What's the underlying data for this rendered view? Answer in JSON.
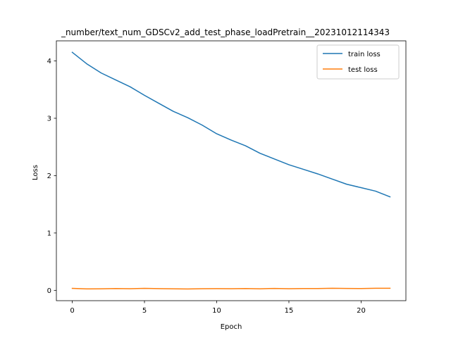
{
  "chart_data": {
    "type": "line",
    "title": "_number/text_num_GDSCv2_add_test_phase_loadPretrain__20231012114343",
    "xlabel": "Epoch",
    "ylabel": "Loss",
    "xlim": [
      -1.1,
      23.1
    ],
    "ylim": [
      -0.18,
      4.35
    ],
    "xticks": [
      0,
      5,
      10,
      15,
      20
    ],
    "yticks": [
      0,
      1,
      2,
      3,
      4
    ],
    "grid": false,
    "legend_position": "top-right",
    "x": [
      0,
      1,
      2,
      3,
      4,
      5,
      6,
      7,
      8,
      9,
      10,
      11,
      12,
      13,
      14,
      15,
      16,
      17,
      18,
      19,
      20,
      21,
      22
    ],
    "series": [
      {
        "name": "train loss",
        "color": "#1f77b4",
        "values": [
          4.15,
          3.95,
          3.79,
          3.67,
          3.55,
          3.4,
          3.26,
          3.12,
          3.01,
          2.88,
          2.73,
          2.62,
          2.52,
          2.39,
          2.29,
          2.19,
          2.11,
          2.03,
          1.94,
          1.85,
          1.79,
          1.73,
          1.63
        ]
      },
      {
        "name": "test loss",
        "color": "#ff7f0e",
        "values": [
          0.035,
          0.025,
          0.027,
          0.032,
          0.028,
          0.035,
          0.03,
          0.027,
          0.024,
          0.028,
          0.03,
          0.029,
          0.032,
          0.027,
          0.034,
          0.028,
          0.031,
          0.032,
          0.036,
          0.033,
          0.032,
          0.037,
          0.036
        ]
      }
    ]
  }
}
